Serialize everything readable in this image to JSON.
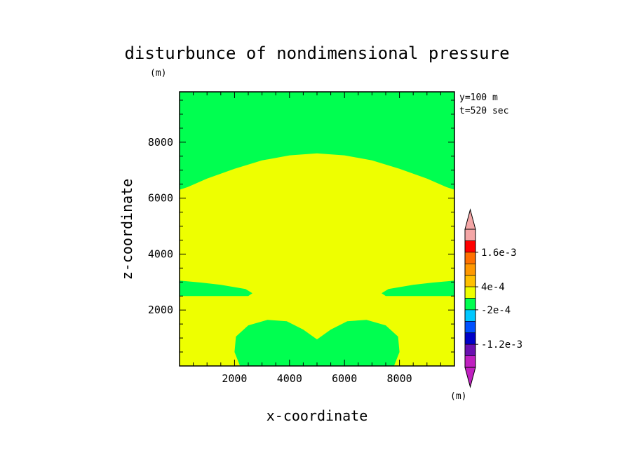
{
  "chart_data": {
    "type": "heatmap",
    "title": "disturbunce of nondimensional pressure",
    "xlabel": "x-coordinate",
    "ylabel": "z-coordinate",
    "y_unit": "(m)",
    "colorbar_unit": "(m)",
    "annotations": [
      "y=100 m",
      "t=520 sec"
    ],
    "xlim": [
      0,
      10000
    ],
    "ylim": [
      0,
      9800
    ],
    "x_ticks": [
      2000,
      4000,
      6000,
      8000
    ],
    "y_ticks": [
      2000,
      4000,
      6000,
      8000
    ],
    "x_minor_step": 500,
    "y_minor_step": 500,
    "background_color": "#00ff50",
    "regions": [
      {
        "name": "yellow-upper",
        "color": "#eeff00",
        "boundary": [
          [
            0,
            0
          ],
          [
            10000,
            0
          ],
          [
            10000,
            6300
          ],
          [
            9700,
            6400
          ],
          [
            9000,
            6700
          ],
          [
            8000,
            7050
          ],
          [
            7000,
            7350
          ],
          [
            6000,
            7530
          ],
          [
            5000,
            7600
          ],
          [
            4000,
            7530
          ],
          [
            3000,
            7350
          ],
          [
            2000,
            7050
          ],
          [
            1000,
            6700
          ],
          [
            300,
            6400
          ],
          [
            0,
            6300
          ]
        ]
      },
      {
        "name": "green-left-band",
        "color": "#00ff50",
        "boundary": [
          [
            0,
            2500
          ],
          [
            2500,
            2500
          ],
          [
            2650,
            2600
          ],
          [
            2400,
            2750
          ],
          [
            1500,
            2900
          ],
          [
            800,
            2980
          ],
          [
            0,
            3050
          ]
        ]
      },
      {
        "name": "green-right-band",
        "color": "#00ff50",
        "boundary": [
          [
            10000,
            2500
          ],
          [
            7500,
            2500
          ],
          [
            7350,
            2600
          ],
          [
            7600,
            2750
          ],
          [
            8500,
            2900
          ],
          [
            9200,
            2980
          ],
          [
            10000,
            3050
          ]
        ]
      },
      {
        "name": "green-bottom-lobes",
        "color": "#00ff50",
        "boundary": [
          [
            2200,
            0
          ],
          [
            2000,
            500
          ],
          [
            2050,
            1050
          ],
          [
            2500,
            1450
          ],
          [
            3200,
            1650
          ],
          [
            3900,
            1600
          ],
          [
            4500,
            1300
          ],
          [
            5000,
            950
          ],
          [
            5500,
            1300
          ],
          [
            6100,
            1600
          ],
          [
            6800,
            1650
          ],
          [
            7500,
            1450
          ],
          [
            7950,
            1050
          ],
          [
            8000,
            500
          ],
          [
            7800,
            0
          ]
        ]
      }
    ],
    "colorbar": {
      "colors_top_to_bottom": [
        "#f4a6a6",
        "#ff0000",
        "#ff7000",
        "#ff9800",
        "#ffc000",
        "#eeff00",
        "#00ff50",
        "#00c8ff",
        "#0050ff",
        "#0000c8",
        "#6a10b0",
        "#c020c0"
      ],
      "tick_labels": [
        "1.6e-3",
        "4e-4",
        "-2e-4",
        "-1.2e-3"
      ],
      "tick_level_index": [
        2,
        5,
        7,
        10
      ]
    }
  }
}
